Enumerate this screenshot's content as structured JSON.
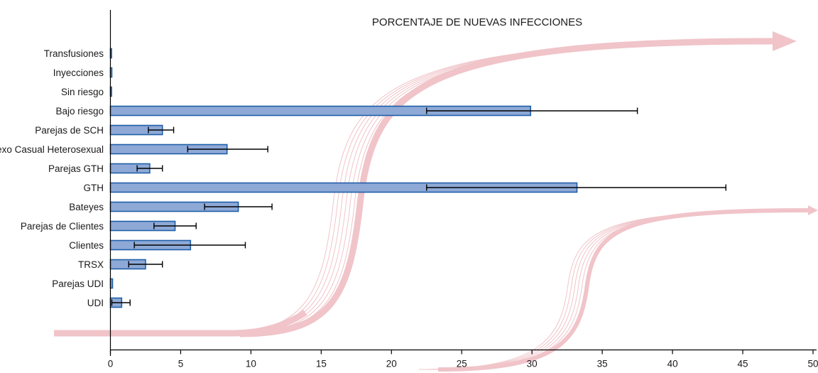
{
  "chart_data": {
    "type": "bar",
    "orientation": "horizontal",
    "title": "PORCENTAJE DE NUEVAS INFECCIONES",
    "xlabel": "",
    "ylabel": "",
    "xlim": [
      0,
      50
    ],
    "xticks": [
      "0",
      "5",
      "10",
      "15",
      "20",
      "25",
      "30",
      "35",
      "40",
      "45",
      "50"
    ],
    "categories": [
      "Transfusiones",
      "Inyecciones",
      "Sin riesgo",
      "Bajo riesgo",
      "Parejas de SCH",
      "Sexo Casual Heterosexual",
      "Parejas GTH",
      "GTH",
      "Bateyes",
      "Parejas de Clientes",
      "Clientes",
      "TRSX",
      "Parejas UDI",
      "UDI"
    ],
    "values": [
      0.02,
      0.1,
      0.02,
      29.9,
      3.7,
      8.3,
      2.8,
      33.2,
      9.1,
      4.6,
      5.7,
      2.5,
      0.15,
      0.8
    ],
    "error_low": [
      0,
      0,
      0,
      22.5,
      2.7,
      5.5,
      1.9,
      22.5,
      6.7,
      3.1,
      1.7,
      1.3,
      0,
      0.1
    ],
    "error_high": [
      0,
      0,
      0,
      37.5,
      4.5,
      11.2,
      3.7,
      43.8,
      11.5,
      6.1,
      9.6,
      3.7,
      0,
      1.4
    ],
    "grid": false,
    "colors": {
      "bar_fill": "#8ea9d6",
      "bar_stroke": "#1f5fa8",
      "decoration": "#f0c4c9"
    }
  }
}
